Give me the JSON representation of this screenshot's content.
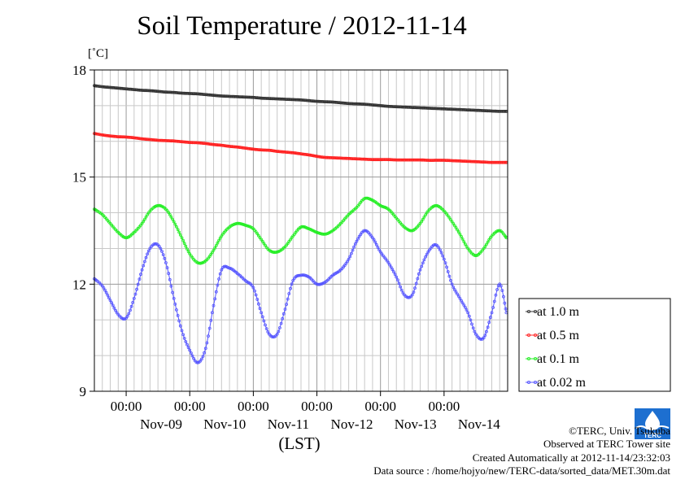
{
  "title": "Soil Temperature / 2012-11-14",
  "credits": {
    "copyright": "©TERC, Univ. Tsukuba",
    "site": "Observed at TERC Tower site",
    "created": "Created Automatically at 2012-11-14/23:32:03",
    "source": "Data source : /home/hojyo/new/TERC-data/sorted_data/MET.30m.dat"
  },
  "logo_text": "TERC",
  "chart_data": {
    "type": "line",
    "title": "Soil Temperature / 2012-11-14",
    "xlabel": "(LST)",
    "ylabel": "[˚C]",
    "ylim": [
      9,
      18
    ],
    "yticks": [
      9,
      12,
      15,
      18
    ],
    "xlim": [
      "2012-11-08T12:00",
      "2012-11-14T24:00"
    ],
    "xtick_time_label": "00:00",
    "xticks": [
      "2012-11-09T00:00",
      "2012-11-10T00:00",
      "2012-11-11T00:00",
      "2012-11-12T00:00",
      "2012-11-13T00:00",
      "2012-11-14T00:00"
    ],
    "day_labels": [
      "Nov-09",
      "Nov-10",
      "Nov-11",
      "Nov-12",
      "Nov-13",
      "Nov-14"
    ],
    "grid": true,
    "legend_position": "right",
    "x": [
      "2012-11-08T12:00",
      "2012-11-08T15:00",
      "2012-11-08T18:00",
      "2012-11-08T21:00",
      "2012-11-09T00:00",
      "2012-11-09T03:00",
      "2012-11-09T06:00",
      "2012-11-09T09:00",
      "2012-11-09T12:00",
      "2012-11-09T15:00",
      "2012-11-09T18:00",
      "2012-11-09T21:00",
      "2012-11-10T00:00",
      "2012-11-10T03:00",
      "2012-11-10T06:00",
      "2012-11-10T09:00",
      "2012-11-10T12:00",
      "2012-11-10T15:00",
      "2012-11-10T18:00",
      "2012-11-10T21:00",
      "2012-11-11T00:00",
      "2012-11-11T03:00",
      "2012-11-11T06:00",
      "2012-11-11T09:00",
      "2012-11-11T12:00",
      "2012-11-11T15:00",
      "2012-11-11T18:00",
      "2012-11-11T21:00",
      "2012-11-12T00:00",
      "2012-11-12T03:00",
      "2012-11-12T06:00",
      "2012-11-12T09:00",
      "2012-11-12T12:00",
      "2012-11-12T15:00",
      "2012-11-12T18:00",
      "2012-11-12T21:00",
      "2012-11-13T00:00",
      "2012-11-13T03:00",
      "2012-11-13T06:00",
      "2012-11-13T09:00",
      "2012-11-13T12:00",
      "2012-11-13T15:00",
      "2012-11-13T18:00",
      "2012-11-13T21:00",
      "2012-11-14T00:00",
      "2012-11-14T03:00",
      "2012-11-14T06:00",
      "2012-11-14T09:00",
      "2012-11-14T12:00",
      "2012-11-14T15:00",
      "2012-11-14T18:00",
      "2012-11-14T21:00",
      "2012-11-14T23:30"
    ],
    "series": [
      {
        "name": "at 1.0 m",
        "color": "#333333",
        "values": [
          17.56,
          17.53,
          17.51,
          17.49,
          17.47,
          17.45,
          17.43,
          17.42,
          17.4,
          17.38,
          17.37,
          17.35,
          17.34,
          17.33,
          17.31,
          17.29,
          17.27,
          17.26,
          17.25,
          17.24,
          17.23,
          17.21,
          17.2,
          17.19,
          17.18,
          17.17,
          17.16,
          17.14,
          17.12,
          17.11,
          17.1,
          17.08,
          17.06,
          17.05,
          17.04,
          17.02,
          17.0,
          16.98,
          16.97,
          16.96,
          16.95,
          16.94,
          16.93,
          16.92,
          16.91,
          16.9,
          16.89,
          16.88,
          16.87,
          16.86,
          16.85,
          16.84,
          16.84
        ]
      },
      {
        "name": "at 0.5 m",
        "color": "#ff2020",
        "values": [
          16.22,
          16.18,
          16.15,
          16.13,
          16.12,
          16.1,
          16.07,
          16.05,
          16.03,
          16.02,
          16.01,
          15.99,
          15.97,
          15.96,
          15.94,
          15.91,
          15.89,
          15.86,
          15.84,
          15.81,
          15.78,
          15.76,
          15.75,
          15.72,
          15.7,
          15.68,
          15.65,
          15.62,
          15.58,
          15.55,
          15.54,
          15.53,
          15.52,
          15.51,
          15.5,
          15.49,
          15.49,
          15.49,
          15.48,
          15.48,
          15.48,
          15.48,
          15.47,
          15.47,
          15.47,
          15.46,
          15.45,
          15.44,
          15.43,
          15.42,
          15.41,
          15.41,
          15.41
        ]
      },
      {
        "name": "at 0.1 m",
        "color": "#22ee22",
        "values": [
          14.1,
          13.95,
          13.7,
          13.45,
          13.3,
          13.45,
          13.7,
          14.05,
          14.2,
          14.1,
          13.75,
          13.3,
          12.85,
          12.6,
          12.65,
          12.95,
          13.35,
          13.6,
          13.7,
          13.65,
          13.55,
          13.25,
          12.95,
          12.9,
          13.05,
          13.35,
          13.6,
          13.55,
          13.45,
          13.4,
          13.5,
          13.7,
          13.95,
          14.15,
          14.4,
          14.35,
          14.2,
          14.1,
          13.85,
          13.6,
          13.5,
          13.7,
          14.05,
          14.2,
          14.05,
          13.75,
          13.4,
          13.0,
          12.8,
          13.0,
          13.35,
          13.5,
          13.3
        ]
      },
      {
        "name": "at 0.02 m",
        "color": "#5555ff",
        "values": [
          12.15,
          11.95,
          11.55,
          11.15,
          11.05,
          11.6,
          12.4,
          13.0,
          13.1,
          12.6,
          11.6,
          10.7,
          10.15,
          9.8,
          10.2,
          11.4,
          12.4,
          12.45,
          12.3,
          12.1,
          11.9,
          11.2,
          10.6,
          10.6,
          11.3,
          12.1,
          12.25,
          12.2,
          12.0,
          12.05,
          12.25,
          12.4,
          12.7,
          13.2,
          13.5,
          13.3,
          12.9,
          12.6,
          12.2,
          11.7,
          11.7,
          12.4,
          12.9,
          13.1,
          12.7,
          12.0,
          11.6,
          11.2,
          10.6,
          10.5,
          11.2,
          12.0,
          11.2
        ]
      }
    ]
  }
}
